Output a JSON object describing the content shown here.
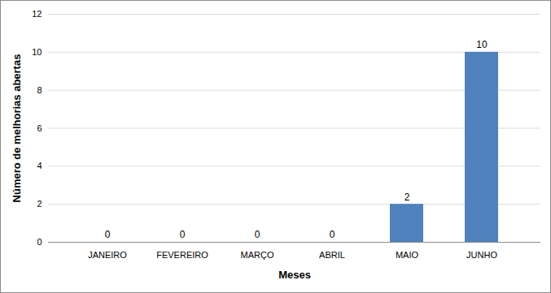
{
  "chart_data": {
    "type": "bar",
    "categories": [
      "JANEIRO",
      "FEVEREIRO",
      "MARÇO",
      "ABRIL",
      "MAIO",
      "JUNHO"
    ],
    "values": [
      0,
      0,
      0,
      0,
      2,
      10
    ],
    "color": "#4f81bd",
    "x_label": "Meses",
    "y_label": "Número de melhorias abertas",
    "ylim": [
      0,
      12
    ],
    "yticks": [
      0,
      2,
      4,
      6,
      8,
      10,
      12
    ],
    "grid": true,
    "data_labels": true
  }
}
